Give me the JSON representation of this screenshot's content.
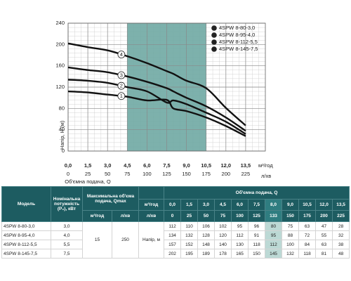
{
  "chart_data": {
    "type": "line",
    "y_label": "Напір, Н (м)",
    "x_label": "Об'ємна подача, Q",
    "x_unit": "м³/год",
    "x2_unit": "л/хв",
    "x": [
      0,
      1.5,
      3,
      4.5,
      6,
      7.5,
      8,
      9,
      10.5,
      12,
      13.5
    ],
    "xlim": [
      0,
      15
    ],
    "ylim": [
      0,
      240
    ],
    "xticks": [
      {
        "value": 0,
        "label": "0,0"
      },
      {
        "value": 1.5,
        "label": "1,5"
      },
      {
        "value": 3,
        "label": "3,0"
      },
      {
        "value": 4.5,
        "label": "4,5"
      },
      {
        "value": 6,
        "label": "6,0"
      },
      {
        "value": 7.5,
        "label": "7,5"
      },
      {
        "value": 9,
        "label": "9,0"
      },
      {
        "value": 10.5,
        "label": "10,5"
      },
      {
        "value": 12,
        "label": "12,0"
      },
      {
        "value": 13.5,
        "label": "13,5"
      }
    ],
    "x2ticks": [
      0,
      25,
      50,
      75,
      100,
      125,
      150,
      175,
      200,
      225
    ],
    "yticks": [
      0,
      40,
      80,
      120,
      160,
      200,
      240
    ],
    "grid": true,
    "minor_grid": true,
    "shade": [
      4.5,
      10.5
    ],
    "shade_color": "#6fa9a3",
    "legend": "top-right",
    "series": [
      {
        "name": "4SPW 8-80-3,0",
        "badge": "1",
        "color": "#111111",
        "values": [
          112,
          110,
          106,
          102,
          95,
          96,
          80,
          75,
          63,
          47,
          28
        ]
      },
      {
        "name": "4SPW 8-95-4,0",
        "badge": "2",
        "color": "#111111",
        "values": [
          134,
          132,
          128,
          120,
          112,
          91,
          95,
          88,
          72,
          55,
          32
        ]
      },
      {
        "name": "4SPW 8-112-5,5",
        "badge": "3",
        "color": "#111111",
        "values": [
          157,
          152,
          148,
          140,
          130,
          118,
          112,
          100,
          84,
          63,
          38
        ]
      },
      {
        "name": "4SPW 8-145-7,5",
        "badge": "4",
        "color": "#111111",
        "values": [
          202,
          195,
          189,
          178,
          165,
          150,
          145,
          132,
          118,
          81,
          48
        ]
      }
    ]
  },
  "table": {
    "model": "Модель",
    "power": "Номінальна потужність (P₂), кВт",
    "qmax": "Максимальна об'єма подача, Qmax",
    "qmax_m3": "м³/год",
    "qmax_l": "л/хв",
    "unit_m3": "м³/год",
    "unit_l": "л/хв",
    "flow": "Об'ємна подача, Q",
    "head_label": "Напір, м",
    "qmax_m3_value": 15,
    "qmax_l_value": 250,
    "highlight_flow": 8,
    "flow_m3": [
      {
        "value": 0,
        "label": "0,0"
      },
      {
        "value": 1.5,
        "label": "1,5"
      },
      {
        "value": 3,
        "label": "3,0"
      },
      {
        "value": 4.5,
        "label": "4,5"
      },
      {
        "value": 6,
        "label": "6,0"
      },
      {
        "value": 7.5,
        "label": "7,5"
      },
      {
        "value": 8,
        "label": "8,0"
      },
      {
        "value": 9,
        "label": "9,0"
      },
      {
        "value": 10.5,
        "label": "10,5"
      },
      {
        "value": 12,
        "label": "12,0"
      },
      {
        "value": 13.5,
        "label": "13,5"
      }
    ],
    "flow_l": [
      0,
      25,
      50,
      75,
      100,
      125,
      133,
      150,
      175,
      200,
      225
    ],
    "rows": [
      {
        "model": "4SPW 8-80-3,0",
        "power": "3,0",
        "head": [
          112,
          110,
          106,
          102,
          95,
          96,
          80,
          75,
          63,
          47,
          28
        ]
      },
      {
        "model": "4SPW 8-95-4,0",
        "power": "4,0",
        "head": [
          134,
          132,
          128,
          120,
          112,
          91,
          95,
          88,
          72,
          55,
          32
        ]
      },
      {
        "model": "4SPW 8-112-5,5",
        "power": "5,5",
        "head": [
          157,
          152,
          148,
          140,
          130,
          118,
          112,
          100,
          84,
          63,
          38
        ]
      },
      {
        "model": "4SPW 8-145-7,5",
        "power": "7,5",
        "head": [
          202,
          195,
          189,
          178,
          165,
          150,
          145,
          132,
          118,
          81,
          48
        ]
      }
    ]
  }
}
